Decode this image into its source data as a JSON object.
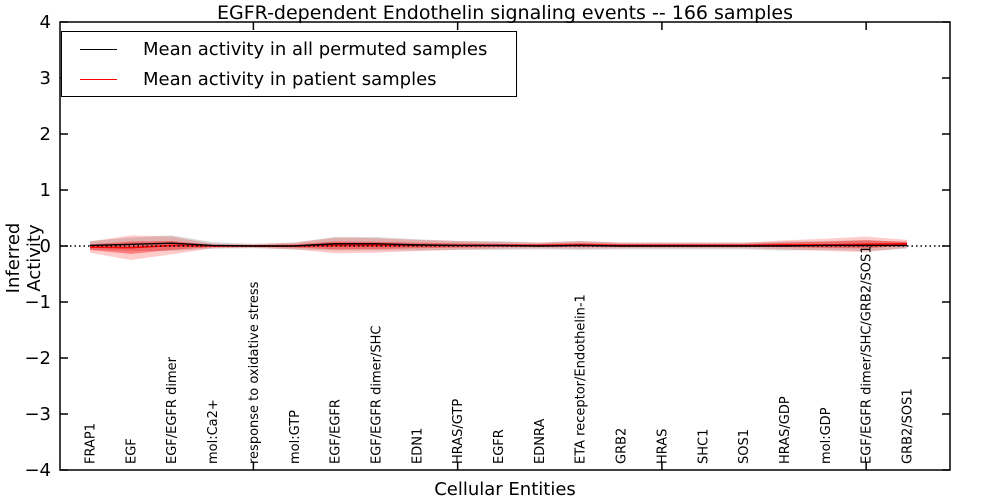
{
  "chart_data": {
    "type": "line",
    "title": "EGFR-dependent Endothelin signaling events -- 166 samples",
    "xlabel": "Cellular Entities",
    "ylabel": "Inferred Activity",
    "ylim": [
      -4,
      4
    ],
    "yticks": [
      -4,
      -3,
      -2,
      -1,
      0,
      1,
      2,
      3,
      4
    ],
    "grid": false,
    "zero_line": {
      "y": 0,
      "style": "dotted",
      "color": "#000000"
    },
    "x_major_tick_indices": [
      4,
      9,
      14,
      19
    ],
    "legend": {
      "position": "upper left",
      "entries": [
        {
          "label": "Mean activity in all permuted samples",
          "color": "#000000"
        },
        {
          "label": "Mean activity in patient samples",
          "color": "#ff0000"
        }
      ]
    },
    "categories": [
      "FRAP1",
      "EGF",
      "EGF/EGFR dimer",
      "mol:Ca2+",
      "response to oxidative stress",
      "mol:GTP",
      "EGF/EGFR",
      "EGF/EGFR dimer/SHC",
      "EDN1",
      "HRAS/GTP",
      "EGFR",
      "EDNRA",
      "ETA receptor/Endothelin-1",
      "GRB2",
      "HRAS",
      "SHC1",
      "SOS1",
      "HRAS/GDP",
      "mol:GDP",
      "EGF/EGFR dimer/SHC/GRB2/SOS1",
      "GRB2/SOS1"
    ],
    "series": [
      {
        "name": "Mean activity in all permuted samples",
        "color": "#000000",
        "values": [
          0.01,
          0.03,
          0.05,
          0.01,
          0.0,
          0.0,
          0.04,
          0.04,
          0.02,
          0.01,
          0.01,
          0.0,
          0.01,
          0.0,
          0.0,
          0.0,
          0.0,
          0.0,
          0.01,
          0.01,
          0.01
        ]
      },
      {
        "name": "Mean activity in patient samples",
        "color": "#ff0000",
        "values": [
          -0.02,
          -0.03,
          0.01,
          0.0,
          0.0,
          0.0,
          0.01,
          0.01,
          0.01,
          0.01,
          0.01,
          0.01,
          0.02,
          0.01,
          0.01,
          0.01,
          0.01,
          0.02,
          0.02,
          0.03,
          0.04
        ]
      }
    ],
    "bands": [
      {
        "name": "permuted-samples-std",
        "center_series": 0,
        "color": "#888888",
        "alpha": 0.3,
        "half_widths": [
          0.08,
          0.12,
          0.14,
          0.06,
          0.04,
          0.06,
          0.12,
          0.12,
          0.1,
          0.08,
          0.08,
          0.06,
          0.08,
          0.06,
          0.06,
          0.06,
          0.06,
          0.08,
          0.08,
          0.1,
          0.06
        ]
      },
      {
        "name": "patient-samples-2std",
        "center_series": 1,
        "color": "#ff0000",
        "alpha": 0.2,
        "half_widths": [
          0.1,
          0.22,
          0.16,
          0.04,
          0.03,
          0.06,
          0.14,
          0.13,
          0.1,
          0.08,
          0.06,
          0.05,
          0.07,
          0.05,
          0.05,
          0.05,
          0.05,
          0.08,
          0.11,
          0.14,
          0.07
        ]
      },
      {
        "name": "patient-samples-1std",
        "center_series": 1,
        "color": "#ff0000",
        "alpha": 0.38,
        "half_widths": [
          0.05,
          0.11,
          0.08,
          0.02,
          0.015,
          0.03,
          0.07,
          0.065,
          0.05,
          0.04,
          0.03,
          0.025,
          0.035,
          0.025,
          0.025,
          0.025,
          0.025,
          0.04,
          0.055,
          0.07,
          0.035
        ]
      }
    ]
  }
}
